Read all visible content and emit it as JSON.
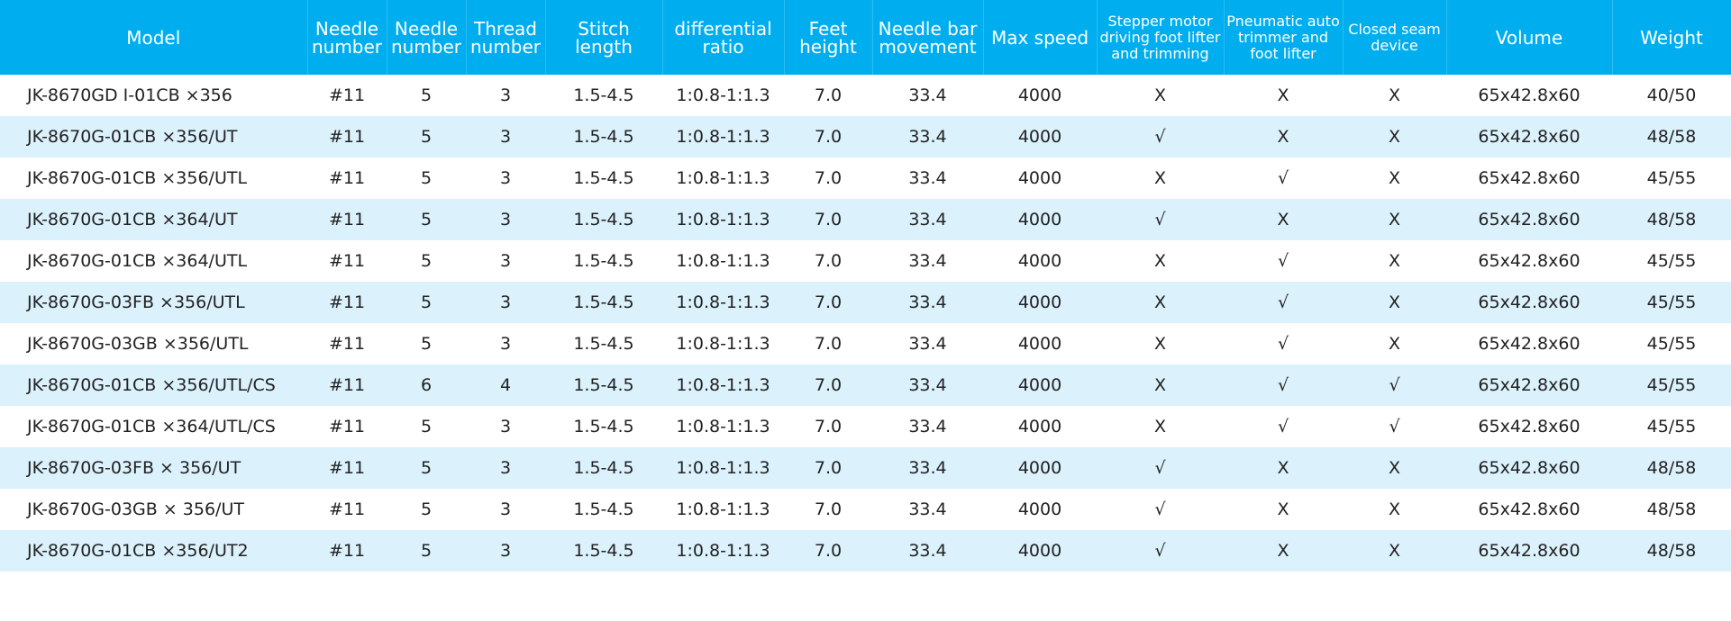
{
  "table": {
    "header": [
      "Model",
      "Needle number",
      "Needle number",
      "Thread number",
      "Stitch length",
      "differential ratio",
      "Feet height",
      "Needle bar movement",
      "Max speed",
      "Stepper motor driving foot lifter and trimming",
      "Pneumatic auto trimmer and foot lifter",
      "Closed seam device",
      "Volume",
      "Weight"
    ],
    "rows": [
      [
        "JK-8670GD Ⅰ-01CB ×356",
        "#11",
        "5",
        "3",
        "1.5-4.5",
        "1:0.8-1:1.3",
        "7.0",
        "33.4",
        "4000",
        "X",
        "X",
        "X",
        "65x42.8x60",
        "40/50"
      ],
      [
        "JK-8670G-01CB ×356/UT",
        "#11",
        "5",
        "3",
        "1.5-4.5",
        "1:0.8-1:1.3",
        "7.0",
        "33.4",
        "4000",
        "√",
        "X",
        "X",
        "65x42.8x60",
        "48/58"
      ],
      [
        "JK-8670G-01CB ×356/UTL",
        "#11",
        "5",
        "3",
        "1.5-4.5",
        "1:0.8-1:1.3",
        "7.0",
        "33.4",
        "4000",
        "X",
        "√",
        "X",
        "65x42.8x60",
        "45/55"
      ],
      [
        "JK-8670G-01CB ×364/UT",
        "#11",
        "5",
        "3",
        "1.5-4.5",
        "1:0.8-1:1.3",
        "7.0",
        "33.4",
        "4000",
        "√",
        "X",
        "X",
        "65x42.8x60",
        "48/58"
      ],
      [
        "JK-8670G-01CB ×364/UTL",
        "#11",
        "5",
        "3",
        "1.5-4.5",
        "1:0.8-1:1.3",
        "7.0",
        "33.4",
        "4000",
        "X",
        "√",
        "X",
        "65x42.8x60",
        "45/55"
      ],
      [
        "JK-8670G-03FB ×356/UTL",
        "#11",
        "5",
        "3",
        "1.5-4.5",
        "1:0.8-1:1.3",
        "7.0",
        "33.4",
        "4000",
        "X",
        "√",
        "X",
        "65x42.8x60",
        "45/55"
      ],
      [
        "JK-8670G-03GB ×356/UTL",
        "#11",
        "5",
        "3",
        "1.5-4.5",
        "1:0.8-1:1.3",
        "7.0",
        "33.4",
        "4000",
        "X",
        "√",
        "X",
        "65x42.8x60",
        "45/55"
      ],
      [
        "JK-8670G-01CB ×356/UTL/CS",
        "#11",
        "6",
        "4",
        "1.5-4.5",
        "1:0.8-1:1.3",
        "7.0",
        "33.4",
        "4000",
        "X",
        "√",
        "√",
        "65x42.8x60",
        "45/55"
      ],
      [
        "JK-8670G-01CB ×364/UTL/CS",
        "#11",
        "5",
        "3",
        "1.5-4.5",
        "1:0.8-1:1.3",
        "7.0",
        "33.4",
        "4000",
        "X",
        "√",
        "√",
        "65x42.8x60",
        "45/55"
      ],
      [
        "JK-8670G-03FB × 356/UT",
        "#11",
        "5",
        "3",
        "1.5-4.5",
        "1:0.8-1:1.3",
        "7.0",
        "33.4",
        "4000",
        "√",
        "X",
        "X",
        "65x42.8x60",
        "48/58"
      ],
      [
        "JK-8670G-03GB × 356/UT",
        "#11",
        "5",
        "3",
        "1.5-4.5",
        "1:0.8-1:1.3",
        "7.0",
        "33.4",
        "4000",
        "√",
        "X",
        "X",
        "65x42.8x60",
        "48/58"
      ],
      [
        "JK-8670G-01CB ×356/UT2",
        "#11",
        "5",
        "3",
        "1.5-4.5",
        "1:0.8-1:1.3",
        "7.0",
        "33.4",
        "4000",
        "√",
        "X",
        "X",
        "65x42.8x60",
        "48/58"
      ]
    ]
  }
}
